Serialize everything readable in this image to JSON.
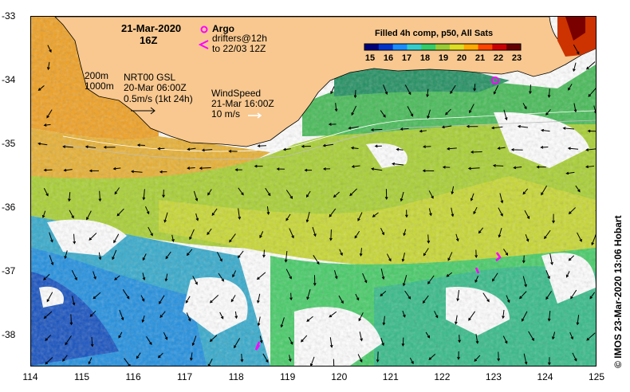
{
  "map": {
    "date": "21-Mar-2020",
    "time": "16Z",
    "legend": {
      "argo_label": "Argo",
      "drifters_label": "drifters@12h",
      "drifters_range": "to 22/03 12Z",
      "isobath_shallow": "200m",
      "isobath_deep": "1000m",
      "currents_title": "NRT00 GSL",
      "currents_date": "20-Mar 06:00Z",
      "currents_scale": "0.5m/s (1kt 24h)",
      "wind_title": "WindSpeed",
      "wind_date": "21-Mar 16:00Z",
      "wind_scale": "10 m/s"
    },
    "colorbar": {
      "title": "Filled 4h comp, p50, All Sats",
      "labels": [
        "15",
        "16",
        "17",
        "18",
        "19",
        "20",
        "21",
        "22",
        "23"
      ],
      "colors": [
        "#00007a",
        "#0033cc",
        "#1a8cff",
        "#33cccc",
        "#33cc66",
        "#99cc33",
        "#dddd22",
        "#ffaa00",
        "#ff4400",
        "#cc0000",
        "#660000"
      ]
    },
    "x_ticks": [
      "114",
      "115",
      "116",
      "117",
      "118",
      "119",
      "120",
      "121",
      "122",
      "123",
      "124",
      "125"
    ],
    "y_ticks": [
      "-33",
      "-34",
      "-35",
      "-36",
      "-37",
      "-38"
    ],
    "credit": "© IMOS 23-Mar-2020 13:06 Hobart",
    "colors": {
      "land": "#f8c890",
      "argo": "#ff00ff"
    }
  }
}
